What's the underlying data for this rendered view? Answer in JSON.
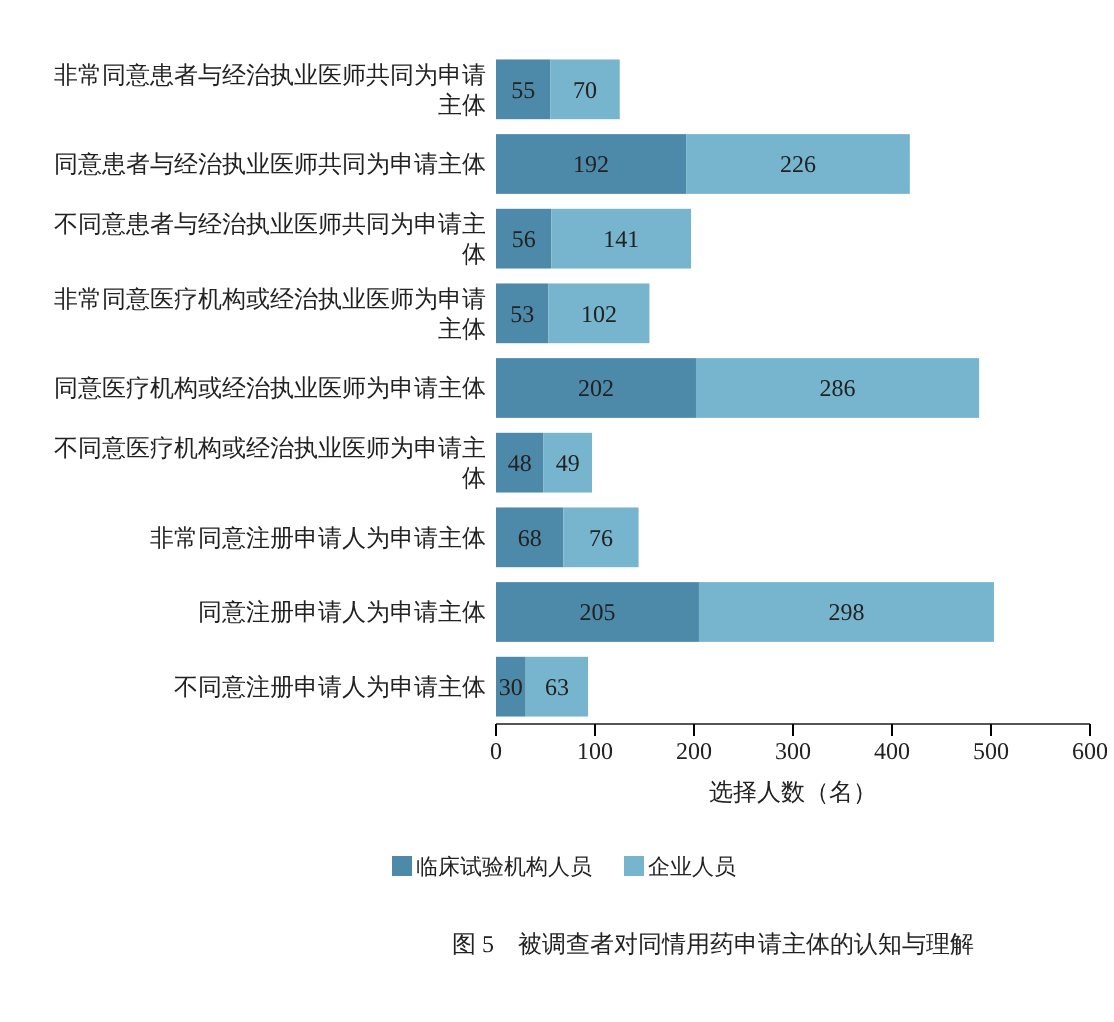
{
  "chart_data": {
    "type": "bar",
    "orientation": "horizontal",
    "stacked": true,
    "data_labels": true,
    "legend": "bottom",
    "categories": [
      "非常同意患者与经治执业医师共同为申请主体",
      "同意患者与经治执业医师共同为申请主体",
      "不同意患者与经治执业医师共同为申请主体",
      "非常同意医疗机构或经治执业医师为申请主体",
      "同意医疗机构或经治执业医师为申请主体",
      "不同意医疗机构或经治执业医师为申请主体",
      "非常同意注册申请人为申请主体",
      "同意注册申请人为申请主体",
      "不同意注册申请人为申请主体"
    ],
    "series": [
      {
        "name": "临床试验机构人员",
        "color": "#4d89a9",
        "values": [
          55,
          192,
          56,
          53,
          202,
          48,
          68,
          205,
          30
        ]
      },
      {
        "name": "企业人员",
        "color": "#76b5cd",
        "values": [
          70,
          226,
          141,
          102,
          286,
          49,
          76,
          298,
          63
        ]
      }
    ],
    "xlim": [
      0,
      600
    ],
    "xticks": [
      0,
      100,
      200,
      300,
      400,
      500,
      600
    ],
    "xlabel": "选择人数（名）",
    "annotations": [
      "图 5　被调查者对同情用药申请主体的认知与理解"
    ]
  }
}
